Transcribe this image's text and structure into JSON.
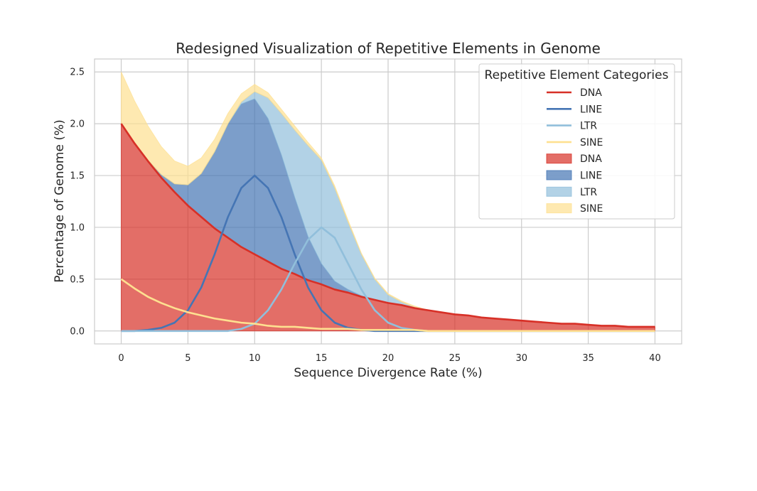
{
  "chart_data": {
    "type": "area",
    "stacked": true,
    "title": "Redesigned Visualization of Repetitive Elements in Genome",
    "xlabel": "Sequence Divergence Rate (%)",
    "ylabel": "Percentage of Genome (%)",
    "xlim": [
      -2,
      42
    ],
    "ylim": [
      -0.125,
      2.625
    ],
    "xticks": [
      0,
      5,
      10,
      15,
      20,
      25,
      30,
      35,
      40
    ],
    "yticks": [
      0.0,
      0.5,
      1.0,
      1.5,
      2.0,
      2.5
    ],
    "xtick_labels": [
      "0",
      "5",
      "10",
      "15",
      "20",
      "25",
      "30",
      "35",
      "40"
    ],
    "ytick_labels": [
      "0.0",
      "0.5",
      "1.0",
      "1.5",
      "2.0",
      "2.5"
    ],
    "grid": true,
    "legend_title": "Repetitive Element Categories",
    "legend_position": "upper right",
    "legend_entries": [
      {
        "label": "DNA",
        "kind": "line",
        "color": "#d73027"
      },
      {
        "label": "LINE",
        "kind": "line",
        "color": "#4575b4"
      },
      {
        "label": "LTR",
        "kind": "line",
        "color": "#91bfdb"
      },
      {
        "label": "SINE",
        "kind": "line",
        "color": "#fee090"
      },
      {
        "label": "DNA",
        "kind": "area",
        "color": "#d73027"
      },
      {
        "label": "LINE",
        "kind": "area",
        "color": "#4575b4"
      },
      {
        "label": "LTR",
        "kind": "area",
        "color": "#91bfdb"
      },
      {
        "label": "SINE",
        "kind": "area",
        "color": "#fee090"
      }
    ],
    "x": [
      0,
      1,
      2,
      3,
      4,
      5,
      6,
      7,
      8,
      9,
      10,
      11,
      12,
      13,
      14,
      15,
      16,
      17,
      18,
      19,
      20,
      21,
      22,
      23,
      24,
      25,
      26,
      27,
      28,
      29,
      30,
      31,
      32,
      33,
      34,
      35,
      36,
      37,
      38,
      39,
      40
    ],
    "series": [
      {
        "name": "DNA",
        "color": "#d73027",
        "values": [
          2.0,
          1.81,
          1.64,
          1.48,
          1.34,
          1.21,
          1.1,
          0.99,
          0.9,
          0.81,
          0.74,
          0.67,
          0.6,
          0.55,
          0.49,
          0.45,
          0.4,
          0.37,
          0.33,
          0.3,
          0.27,
          0.25,
          0.22,
          0.2,
          0.18,
          0.16,
          0.15,
          0.13,
          0.12,
          0.11,
          0.1,
          0.09,
          0.08,
          0.07,
          0.07,
          0.06,
          0.05,
          0.05,
          0.04,
          0.04,
          0.04
        ]
      },
      {
        "name": "LINE",
        "color": "#4575b4",
        "values": [
          0.0,
          0.0,
          0.01,
          0.03,
          0.08,
          0.2,
          0.42,
          0.74,
          1.1,
          1.38,
          1.5,
          1.38,
          1.1,
          0.74,
          0.42,
          0.2,
          0.08,
          0.03,
          0.01,
          0.0,
          0.0,
          0.0,
          0.0,
          0.0,
          0.0,
          0.0,
          0.0,
          0.0,
          0.0,
          0.0,
          0.0,
          0.0,
          0.0,
          0.0,
          0.0,
          0.0,
          0.0,
          0.0,
          0.0,
          0.0,
          0.0
        ]
      },
      {
        "name": "LTR",
        "color": "#91bfdb",
        "values": [
          0.0,
          0.0,
          0.0,
          0.0,
          0.0,
          0.0,
          0.0,
          0.0,
          0.0,
          0.02,
          0.07,
          0.2,
          0.4,
          0.65,
          0.88,
          1.0,
          0.9,
          0.65,
          0.4,
          0.2,
          0.08,
          0.03,
          0.01,
          0.0,
          0.0,
          0.0,
          0.0,
          0.0,
          0.0,
          0.0,
          0.0,
          0.0,
          0.0,
          0.0,
          0.0,
          0.0,
          0.0,
          0.0,
          0.0,
          0.0,
          0.0
        ]
      },
      {
        "name": "SINE",
        "color": "#fee090",
        "values": [
          0.5,
          0.41,
          0.33,
          0.27,
          0.22,
          0.18,
          0.15,
          0.12,
          0.1,
          0.08,
          0.07,
          0.05,
          0.04,
          0.04,
          0.03,
          0.02,
          0.02,
          0.02,
          0.01,
          0.01,
          0.01,
          0.01,
          0.01,
          0.0,
          0.0,
          0.0,
          0.0,
          0.0,
          0.0,
          0.0,
          0.0,
          0.0,
          0.0,
          0.0,
          0.0,
          0.0,
          0.0,
          0.0,
          0.0,
          0.0,
          0.0
        ]
      }
    ]
  }
}
